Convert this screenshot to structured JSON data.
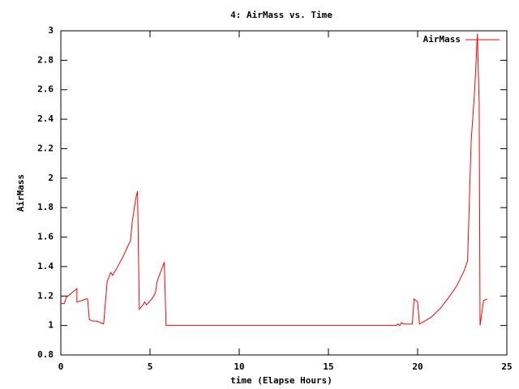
{
  "chart_data": {
    "type": "line",
    "title": "4: AirMass vs. Time",
    "x_label": "time (Elapse Hours)",
    "y_label": "AirMass",
    "x": [
      0,
      0.2,
      0.3,
      0.8,
      0.9,
      0.9,
      1.2,
      1.4,
      1.5,
      1.6,
      1.8,
      2.0,
      2.4,
      2.6,
      2.7,
      2.8,
      2.9,
      3.1,
      3.5,
      3.8,
      3.9,
      4.0,
      4.2,
      4.3,
      4.4,
      4.6,
      4.7,
      4.8,
      5.1,
      5.3,
      5.4,
      5.8,
      5.9,
      18.8,
      18.9,
      19.0,
      19.1,
      19.2,
      19.7,
      19.8,
      20.0,
      20.1,
      20.4,
      20.8,
      21.3,
      21.8,
      22.2,
      22.6,
      22.8,
      23.0,
      23.2,
      23.35,
      23.45,
      23.5,
      23.7,
      23.9
    ],
    "series": [
      {
        "name": "AirMass",
        "color": "#ff0000",
        "values": [
          1.15,
          1.15,
          1.19,
          1.24,
          1.25,
          1.16,
          1.17,
          1.18,
          1.18,
          1.04,
          1.03,
          1.03,
          1.01,
          1.3,
          1.33,
          1.36,
          1.34,
          1.38,
          1.47,
          1.55,
          1.57,
          1.7,
          1.86,
          1.91,
          1.11,
          1.14,
          1.16,
          1.14,
          1.18,
          1.22,
          1.3,
          1.43,
          1.0,
          1.0,
          1.01,
          1.0,
          1.02,
          1.01,
          1.01,
          1.18,
          1.16,
          1.01,
          1.03,
          1.06,
          1.12,
          1.2,
          1.27,
          1.37,
          1.44,
          2.25,
          2.6,
          2.98,
          2.5,
          1.0,
          1.17,
          1.18
        ]
      }
    ],
    "xlim": [
      0,
      25
    ],
    "xticks": [
      0,
      5,
      10,
      15,
      20,
      25
    ],
    "ylim": [
      0.8,
      3
    ],
    "yticks": [
      0.8,
      1,
      1.2,
      1.4,
      1.6,
      1.8,
      2,
      2.2,
      2.4,
      2.6,
      2.8,
      3
    ],
    "grid": false,
    "legend": "top-right"
  }
}
